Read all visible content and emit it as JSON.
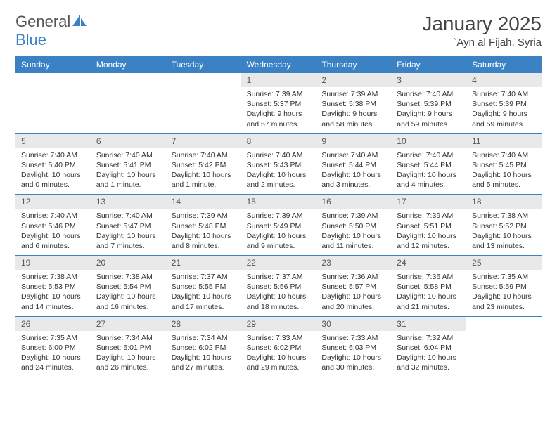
{
  "brand": {
    "part1": "General",
    "part2": "Blue"
  },
  "title": "January 2025",
  "location": "`Ayn al Fijah, Syria",
  "colors": {
    "header_bg": "#3b82c4",
    "header_text": "#ffffff",
    "daynum_bg": "#e9e9e9",
    "text": "#333333",
    "rule": "#3b82c4"
  },
  "day_names": [
    "Sunday",
    "Monday",
    "Tuesday",
    "Wednesday",
    "Thursday",
    "Friday",
    "Saturday"
  ],
  "weeks": [
    [
      null,
      null,
      null,
      {
        "n": "1",
        "sunrise": "7:39 AM",
        "sunset": "5:37 PM",
        "daylight": "9 hours and 57 minutes."
      },
      {
        "n": "2",
        "sunrise": "7:39 AM",
        "sunset": "5:38 PM",
        "daylight": "9 hours and 58 minutes."
      },
      {
        "n": "3",
        "sunrise": "7:40 AM",
        "sunset": "5:39 PM",
        "daylight": "9 hours and 59 minutes."
      },
      {
        "n": "4",
        "sunrise": "7:40 AM",
        "sunset": "5:39 PM",
        "daylight": "9 hours and 59 minutes."
      }
    ],
    [
      {
        "n": "5",
        "sunrise": "7:40 AM",
        "sunset": "5:40 PM",
        "daylight": "10 hours and 0 minutes."
      },
      {
        "n": "6",
        "sunrise": "7:40 AM",
        "sunset": "5:41 PM",
        "daylight": "10 hours and 1 minute."
      },
      {
        "n": "7",
        "sunrise": "7:40 AM",
        "sunset": "5:42 PM",
        "daylight": "10 hours and 1 minute."
      },
      {
        "n": "8",
        "sunrise": "7:40 AM",
        "sunset": "5:43 PM",
        "daylight": "10 hours and 2 minutes."
      },
      {
        "n": "9",
        "sunrise": "7:40 AM",
        "sunset": "5:44 PM",
        "daylight": "10 hours and 3 minutes."
      },
      {
        "n": "10",
        "sunrise": "7:40 AM",
        "sunset": "5:44 PM",
        "daylight": "10 hours and 4 minutes."
      },
      {
        "n": "11",
        "sunrise": "7:40 AM",
        "sunset": "5:45 PM",
        "daylight": "10 hours and 5 minutes."
      }
    ],
    [
      {
        "n": "12",
        "sunrise": "7:40 AM",
        "sunset": "5:46 PM",
        "daylight": "10 hours and 6 minutes."
      },
      {
        "n": "13",
        "sunrise": "7:40 AM",
        "sunset": "5:47 PM",
        "daylight": "10 hours and 7 minutes."
      },
      {
        "n": "14",
        "sunrise": "7:39 AM",
        "sunset": "5:48 PM",
        "daylight": "10 hours and 8 minutes."
      },
      {
        "n": "15",
        "sunrise": "7:39 AM",
        "sunset": "5:49 PM",
        "daylight": "10 hours and 9 minutes."
      },
      {
        "n": "16",
        "sunrise": "7:39 AM",
        "sunset": "5:50 PM",
        "daylight": "10 hours and 11 minutes."
      },
      {
        "n": "17",
        "sunrise": "7:39 AM",
        "sunset": "5:51 PM",
        "daylight": "10 hours and 12 minutes."
      },
      {
        "n": "18",
        "sunrise": "7:38 AM",
        "sunset": "5:52 PM",
        "daylight": "10 hours and 13 minutes."
      }
    ],
    [
      {
        "n": "19",
        "sunrise": "7:38 AM",
        "sunset": "5:53 PM",
        "daylight": "10 hours and 14 minutes."
      },
      {
        "n": "20",
        "sunrise": "7:38 AM",
        "sunset": "5:54 PM",
        "daylight": "10 hours and 16 minutes."
      },
      {
        "n": "21",
        "sunrise": "7:37 AM",
        "sunset": "5:55 PM",
        "daylight": "10 hours and 17 minutes."
      },
      {
        "n": "22",
        "sunrise": "7:37 AM",
        "sunset": "5:56 PM",
        "daylight": "10 hours and 18 minutes."
      },
      {
        "n": "23",
        "sunrise": "7:36 AM",
        "sunset": "5:57 PM",
        "daylight": "10 hours and 20 minutes."
      },
      {
        "n": "24",
        "sunrise": "7:36 AM",
        "sunset": "5:58 PM",
        "daylight": "10 hours and 21 minutes."
      },
      {
        "n": "25",
        "sunrise": "7:35 AM",
        "sunset": "5:59 PM",
        "daylight": "10 hours and 23 minutes."
      }
    ],
    [
      {
        "n": "26",
        "sunrise": "7:35 AM",
        "sunset": "6:00 PM",
        "daylight": "10 hours and 24 minutes."
      },
      {
        "n": "27",
        "sunrise": "7:34 AM",
        "sunset": "6:01 PM",
        "daylight": "10 hours and 26 minutes."
      },
      {
        "n": "28",
        "sunrise": "7:34 AM",
        "sunset": "6:02 PM",
        "daylight": "10 hours and 27 minutes."
      },
      {
        "n": "29",
        "sunrise": "7:33 AM",
        "sunset": "6:02 PM",
        "daylight": "10 hours and 29 minutes."
      },
      {
        "n": "30",
        "sunrise": "7:33 AM",
        "sunset": "6:03 PM",
        "daylight": "10 hours and 30 minutes."
      },
      {
        "n": "31",
        "sunrise": "7:32 AM",
        "sunset": "6:04 PM",
        "daylight": "10 hours and 32 minutes."
      },
      null
    ]
  ]
}
